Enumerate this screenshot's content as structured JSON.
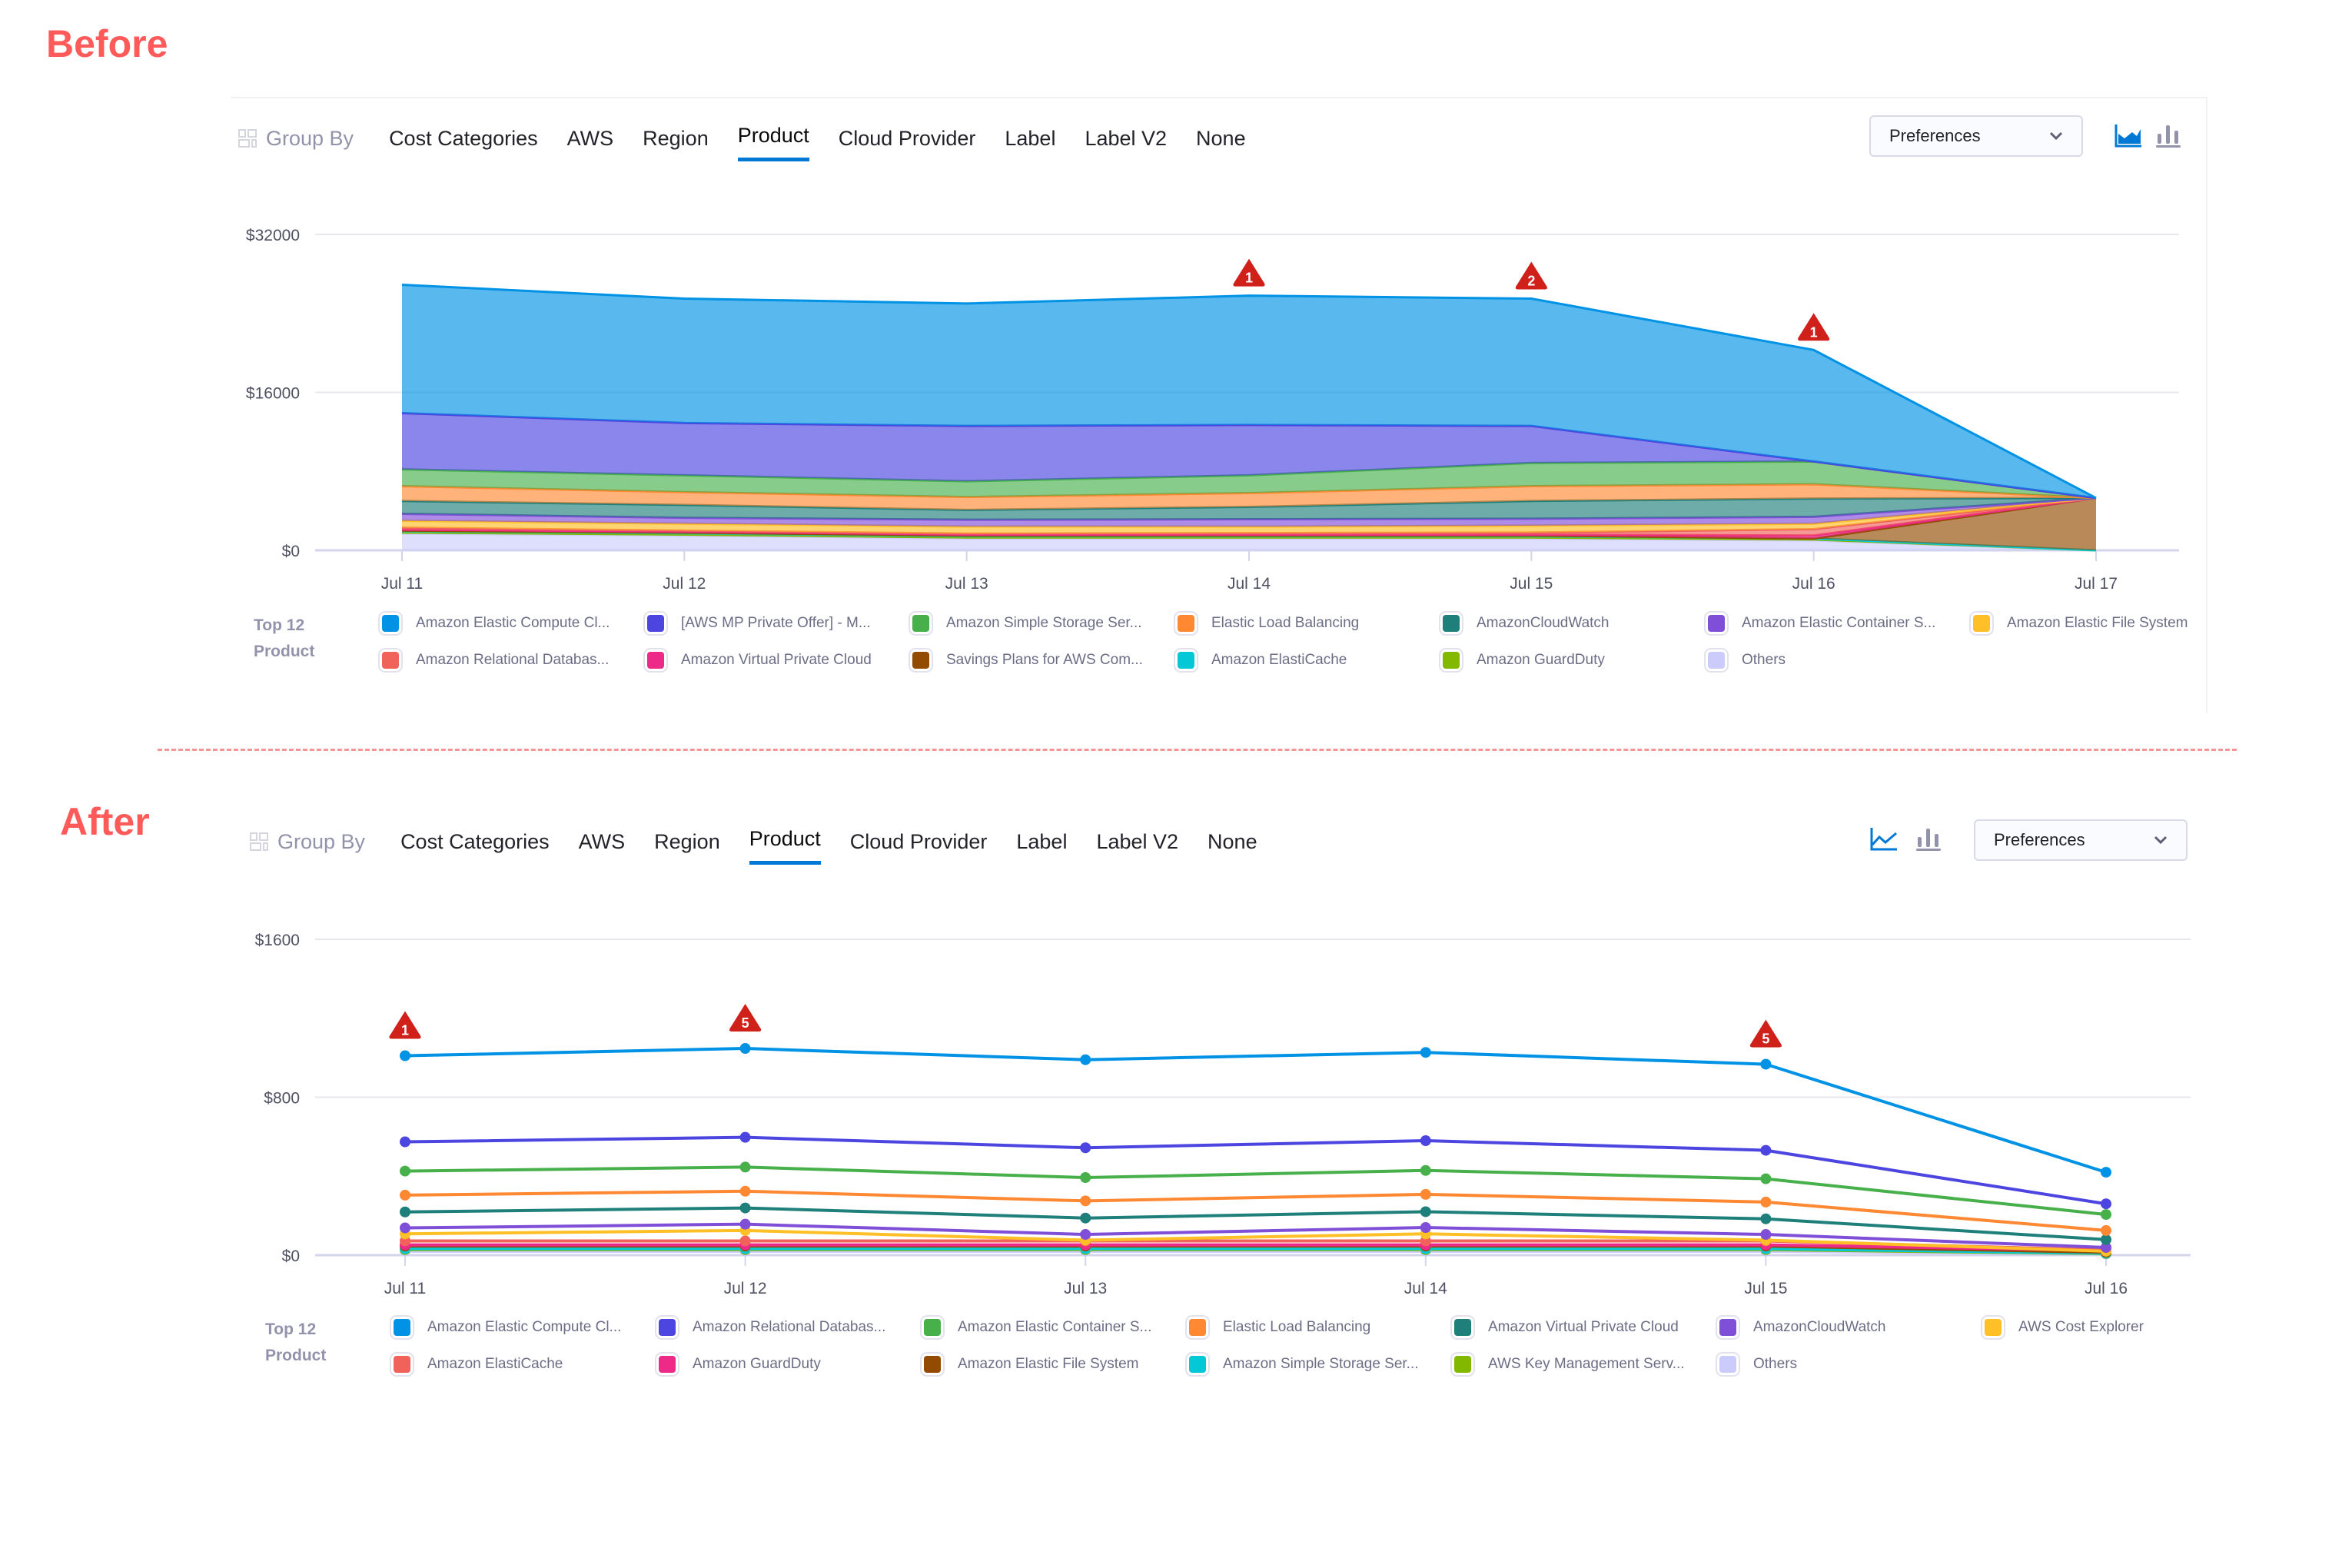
{
  "before": {
    "label": "Before",
    "toolbar": {
      "group_by": "Group By",
      "tabs": [
        "Cost Categories",
        "AWS",
        "Region",
        "Product",
        "Cloud Provider",
        "Label",
        "Label V2",
        "None"
      ],
      "active_tab": "Product",
      "preferences": "Preferences",
      "active_chart_type": "area"
    },
    "legend": {
      "title_line1": "Top 12",
      "title_line2": "Product",
      "items": [
        {
          "label": "Amazon Elastic Compute Cl...",
          "color": "#0092E4"
        },
        {
          "label": "[AWS MP Private Offer] - M...",
          "color": "#4D45E0"
        },
        {
          "label": "Amazon Simple Storage Ser...",
          "color": "#47B04B"
        },
        {
          "label": "Elastic Load Balancing",
          "color": "#FF8833"
        },
        {
          "label": "AmazonCloudWatch",
          "color": "#1F7F7A"
        },
        {
          "label": "Amazon Elastic Container S...",
          "color": "#7F4FD8"
        },
        {
          "label": "Amazon Elastic File System",
          "color": "#FFBF27"
        },
        {
          "label": "Amazon Relational Databas...",
          "color": "#F0625A"
        },
        {
          "label": "Amazon Virtual Private Cloud",
          "color": "#EE2A88"
        },
        {
          "label": "Savings Plans for AWS Com...",
          "color": "#924B00"
        },
        {
          "label": "Amazon ElastiCache",
          "color": "#05C8D6"
        },
        {
          "label": "Amazon GuardDuty",
          "color": "#83B800"
        },
        {
          "label": "Others",
          "color": "#CCCCFC"
        }
      ]
    }
  },
  "after": {
    "label": "After",
    "toolbar": {
      "group_by": "Group By",
      "tabs": [
        "Cost Categories",
        "AWS",
        "Region",
        "Product",
        "Cloud Provider",
        "Label",
        "Label V2",
        "None"
      ],
      "active_tab": "Product",
      "preferences": "Preferences",
      "active_chart_type": "line"
    },
    "legend": {
      "title_line1": "Top 12",
      "title_line2": "Product",
      "items": [
        {
          "label": "Amazon Elastic Compute Cl...",
          "color": "#0092E4"
        },
        {
          "label": "Amazon Relational Databas...",
          "color": "#4D45E0"
        },
        {
          "label": "Amazon Elastic Container S...",
          "color": "#47B04B"
        },
        {
          "label": "Elastic Load Balancing",
          "color": "#FF8833"
        },
        {
          "label": "Amazon Virtual Private Cloud",
          "color": "#1F7F7A"
        },
        {
          "label": "AmazonCloudWatch",
          "color": "#7F4FD8"
        },
        {
          "label": "AWS Cost Explorer",
          "color": "#FFBF27"
        },
        {
          "label": "Amazon ElastiCache",
          "color": "#F0625A"
        },
        {
          "label": "Amazon GuardDuty",
          "color": "#EE2A88"
        },
        {
          "label": "Amazon Elastic File System",
          "color": "#924B00"
        },
        {
          "label": "Amazon Simple Storage Ser...",
          "color": "#05C8D6"
        },
        {
          "label": "AWS Key Management Serv...",
          "color": "#83B800"
        },
        {
          "label": "Others",
          "color": "#CCCCFC"
        }
      ]
    }
  },
  "chart_data": [
    {
      "type": "area",
      "stacked": true,
      "categories": [
        "Jul 11",
        "Jul 12",
        "Jul 13",
        "Jul 14",
        "Jul 15",
        "Jul 16",
        "Jul 17"
      ],
      "yticks": [
        "$0",
        "$16000",
        "$32000"
      ],
      "ylim": [
        0,
        32000
      ],
      "grid": true,
      "legend_position": "bottom",
      "annotations": [
        {
          "x": "Jul 14",
          "label": "1"
        },
        {
          "x": "Jul 15",
          "label": "2"
        },
        {
          "x": "Jul 16",
          "label": "1"
        }
      ],
      "series": [
        {
          "name": "Amazon Elastic Compute Cl...",
          "values": [
            13000,
            12600,
            12400,
            13100,
            12900,
            11300,
            0
          ]
        },
        {
          "name": "[AWS MP Private Offer] - M...",
          "values": [
            5700,
            5300,
            5600,
            5100,
            3750,
            0,
            0
          ]
        },
        {
          "name": "Amazon Simple Storage Ser...",
          "values": [
            1700,
            1700,
            1600,
            1800,
            2350,
            2300,
            0
          ]
        },
        {
          "name": "Elastic Load Balancing",
          "values": [
            1500,
            1300,
            1300,
            1400,
            1500,
            1450,
            0
          ]
        },
        {
          "name": "AmazonCloudWatch",
          "values": [
            1300,
            1300,
            1000,
            1250,
            1800,
            1850,
            0
          ]
        },
        {
          "name": "Amazon Elastic Container S...",
          "values": [
            700,
            600,
            700,
            750,
            700,
            700,
            0
          ]
        },
        {
          "name": "Amazon Elastic File System",
          "values": [
            700,
            700,
            700,
            650,
            700,
            550,
            0
          ]
        },
        {
          "name": "Amazon Relational Databas...",
          "values": [
            200,
            100,
            100,
            150,
            200,
            650,
            0
          ]
        },
        {
          "name": "Amazon Virtual Private Cloud",
          "values": [
            100,
            100,
            100,
            100,
            100,
            300,
            0
          ]
        },
        {
          "name": "Savings Plans for AWS Com...",
          "values": [
            0,
            0,
            0,
            0,
            0,
            0,
            5300
          ]
        },
        {
          "name": "Amazon ElastiCache",
          "values": [
            200,
            200,
            200,
            200,
            200,
            100,
            0
          ]
        },
        {
          "name": "Amazon GuardDuty",
          "values": [
            100,
            100,
            100,
            100,
            100,
            100,
            0
          ]
        },
        {
          "name": "Others",
          "values": [
            1700,
            1500,
            1200,
            1200,
            1200,
            1000,
            0
          ]
        }
      ]
    },
    {
      "type": "line",
      "categories": [
        "Jul 11",
        "Jul 12",
        "Jul 13",
        "Jul 14",
        "Jul 15",
        "Jul 16"
      ],
      "yticks": [
        "$0",
        "$800",
        "$1600"
      ],
      "ylim": [
        0,
        1600
      ],
      "grid": true,
      "legend_position": "bottom",
      "annotations": [
        {
          "x": "Jul 11",
          "label": "1"
        },
        {
          "x": "Jul 12",
          "label": "5"
        },
        {
          "x": "Jul 15",
          "label": "5"
        }
      ],
      "series": [
        {
          "name": "Amazon Elastic Compute Cl...",
          "values": [
            1010,
            1047,
            990,
            1027,
            967,
            420
          ]
        },
        {
          "name": "Amazon Relational Databas...",
          "values": [
            574,
            597,
            544,
            580,
            531,
            260
          ]
        },
        {
          "name": "Amazon Elastic Container S...",
          "values": [
            426,
            446,
            393,
            429,
            387,
            206
          ]
        },
        {
          "name": "Elastic Load Balancing",
          "values": [
            304,
            324,
            275,
            308,
            269,
            125
          ]
        },
        {
          "name": "Amazon Virtual Private Cloud",
          "values": [
            219,
            239,
            188,
            220,
            184,
            79
          ]
        },
        {
          "name": "AmazonCloudWatch",
          "values": [
            138,
            157,
            105,
            140,
            105,
            39
          ]
        },
        {
          "name": "AWS Cost Explorer",
          "values": [
            108,
            125,
            76,
            108,
            76,
            20
          ]
        },
        {
          "name": "Amazon ElastiCache",
          "values": [
            72,
            72,
            72,
            72,
            72,
            26
          ]
        },
        {
          "name": "Amazon GuardDuty",
          "values": [
            52,
            52,
            52,
            52,
            52,
            24
          ]
        },
        {
          "name": "Amazon Elastic File System",
          "values": [
            46,
            46,
            46,
            46,
            46,
            15
          ]
        },
        {
          "name": "Amazon Simple Storage Ser...",
          "values": [
            33,
            33,
            33,
            33,
            33,
            10
          ]
        },
        {
          "name": "AWS Key Management Serv...",
          "values": [
            28,
            28,
            28,
            28,
            28,
            8
          ]
        },
        {
          "name": "Others",
          "values": [
            20,
            20,
            20,
            20,
            20,
            5
          ]
        }
      ]
    }
  ]
}
